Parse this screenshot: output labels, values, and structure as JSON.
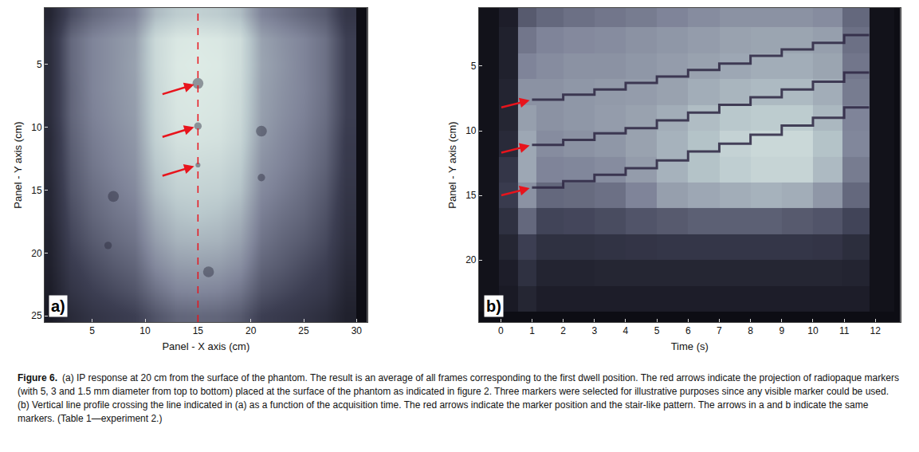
{
  "chart_data": [
    {
      "type": "heatmap",
      "panel": "a)",
      "xlabel": "Panel - X axis (cm)",
      "ylabel": "Panel - Y axis (cm)",
      "xlim": [
        0.5,
        31
      ],
      "ylim": [
        25.5,
        0.5
      ],
      "xticks": [
        5,
        10,
        15,
        20,
        25,
        30
      ],
      "yticks": [
        5,
        10,
        15,
        20,
        25
      ],
      "x": [
        1,
        3,
        5,
        7,
        9,
        11,
        13,
        15,
        17,
        19,
        21,
        23,
        25,
        27,
        29
      ],
      "y": [
        1,
        3,
        5,
        7,
        9,
        11,
        13,
        15,
        17,
        19,
        21,
        23,
        25
      ],
      "z": [
        [
          15,
          35,
          45,
          50,
          55,
          75,
          82,
          84,
          82,
          76,
          55,
          50,
          45,
          40,
          25
        ],
        [
          20,
          45,
          55,
          60,
          65,
          88,
          95,
          96,
          95,
          90,
          66,
          60,
          55,
          48,
          30
        ],
        [
          20,
          45,
          55,
          60,
          66,
          88,
          96,
          97,
          96,
          90,
          67,
          61,
          55,
          48,
          30
        ],
        [
          20,
          44,
          55,
          60,
          65,
          87,
          95,
          96,
          95,
          89,
          66,
          60,
          55,
          48,
          30
        ],
        [
          20,
          44,
          54,
          59,
          64,
          86,
          94,
          95,
          94,
          88,
          65,
          59,
          54,
          47,
          30
        ],
        [
          18,
          42,
          52,
          57,
          62,
          84,
          92,
          93,
          92,
          86,
          63,
          57,
          52,
          45,
          28
        ],
        [
          18,
          40,
          50,
          55,
          60,
          80,
          88,
          89,
          88,
          82,
          60,
          55,
          50,
          43,
          27
        ],
        [
          16,
          38,
          47,
          52,
          57,
          76,
          84,
          85,
          84,
          78,
          57,
          52,
          47,
          40,
          25
        ],
        [
          15,
          35,
          44,
          49,
          53,
          70,
          78,
          80,
          78,
          72,
          53,
          48,
          44,
          37,
          23
        ],
        [
          13,
          32,
          40,
          45,
          49,
          64,
          72,
          73,
          72,
          66,
          49,
          44,
          40,
          34,
          21
        ],
        [
          12,
          28,
          35,
          40,
          44,
          57,
          64,
          65,
          64,
          59,
          44,
          40,
          35,
          30,
          18
        ],
        [
          10,
          24,
          30,
          34,
          38,
          48,
          55,
          56,
          55,
          50,
          38,
          34,
          30,
          26,
          15
        ],
        [
          8,
          18,
          24,
          27,
          30,
          38,
          44,
          45,
          44,
          40,
          30,
          27,
          24,
          20,
          12
        ]
      ],
      "zlim": [
        0,
        100
      ],
      "markers": [
        {
          "x": 15,
          "y": 6.5,
          "diameter_mm": 5
        },
        {
          "x": 15,
          "y": 9.9,
          "diameter_mm": 3
        },
        {
          "x": 15,
          "y": 13,
          "diameter_mm": 1.5
        },
        {
          "x": 21,
          "y": 10.3,
          "diameter_mm": 5
        },
        {
          "x": 21,
          "y": 14,
          "diameter_mm": 3
        },
        {
          "x": 7,
          "y": 15.5,
          "diameter_mm": 5
        },
        {
          "x": 6.5,
          "y": 19.4,
          "diameter_mm": 3
        },
        {
          "x": 16,
          "y": 21.5,
          "diameter_mm": 5
        }
      ],
      "line_x": 15,
      "arrows": [
        {
          "x": 15,
          "y": 6.5
        },
        {
          "x": 15,
          "y": 9.9
        },
        {
          "x": 15,
          "y": 13
        }
      ]
    },
    {
      "type": "heatmap",
      "panel": "b)",
      "xlabel": "Time (s)",
      "ylabel": "Panel - Y axis (cm)",
      "xlim": [
        -0.7,
        12.8
      ],
      "ylim": [
        24.8,
        0.5
      ],
      "xticks": [
        0,
        1,
        2,
        3,
        4,
        5,
        6,
        7,
        8,
        9,
        10,
        11,
        12
      ],
      "yticks": [
        5,
        10,
        15,
        20
      ],
      "x": [
        -0.4,
        0.3,
        0.8,
        1.5,
        2.5,
        3.5,
        4.5,
        5.5,
        6.5,
        7.5,
        8.5,
        9.5,
        10.5,
        11.4,
        12.2
      ],
      "y": [
        1,
        3,
        5,
        7,
        9,
        11,
        13,
        15,
        17,
        19,
        21,
        23
      ],
      "z": [
        [
          3,
          10,
          40,
          45,
          48,
          50,
          52,
          55,
          58,
          60,
          60,
          60,
          58,
          45,
          3
        ],
        [
          3,
          12,
          50,
          55,
          57,
          58,
          60,
          62,
          64,
          66,
          67,
          67,
          65,
          48,
          3
        ],
        [
          3,
          12,
          55,
          58,
          60,
          60,
          62,
          64,
          66,
          68,
          70,
          70,
          67,
          50,
          3
        ],
        [
          3,
          14,
          60,
          60,
          62,
          63,
          64,
          66,
          70,
          73,
          75,
          75,
          70,
          52,
          3
        ],
        [
          3,
          15,
          65,
          60,
          62,
          64,
          66,
          70,
          76,
          80,
          82,
          82,
          74,
          55,
          3
        ],
        [
          3,
          18,
          68,
          58,
          60,
          62,
          66,
          72,
          78,
          85,
          88,
          88,
          78,
          56,
          3
        ],
        [
          3,
          25,
          68,
          55,
          56,
          58,
          64,
          72,
          78,
          83,
          86,
          86,
          75,
          52,
          3
        ],
        [
          3,
          28,
          60,
          45,
          46,
          48,
          55,
          65,
          68,
          70,
          72,
          70,
          62,
          45,
          3
        ],
        [
          3,
          22,
          45,
          32,
          33,
          35,
          38,
          40,
          42,
          42,
          42,
          40,
          38,
          32,
          3
        ],
        [
          3,
          15,
          30,
          22,
          22,
          23,
          24,
          25,
          25,
          25,
          25,
          25,
          24,
          20,
          3
        ],
        [
          3,
          10,
          22,
          14,
          14,
          15,
          15,
          15,
          15,
          15,
          15,
          15,
          15,
          14,
          3
        ],
        [
          3,
          8,
          15,
          10,
          10,
          10,
          10,
          10,
          10,
          10,
          10,
          10,
          10,
          10,
          3
        ]
      ],
      "zlim": [
        0,
        100
      ],
      "lines": [
        {
          "x": [
            1,
            2,
            3,
            4,
            5,
            6,
            7,
            8,
            9,
            10,
            11,
            11.8
          ],
          "values": [
            7.6,
            7.2,
            6.8,
            6.3,
            5.8,
            5.3,
            4.8,
            4.2,
            3.7,
            3.2,
            2.6,
            2.6
          ]
        },
        {
          "x": [
            1,
            2,
            3,
            4,
            5,
            6,
            7,
            8,
            9,
            10,
            11,
            11.8
          ],
          "values": [
            11.1,
            10.7,
            10.2,
            9.8,
            9.2,
            8.6,
            8.0,
            7.4,
            6.8,
            6.2,
            5.5,
            5.5
          ]
        },
        {
          "x": [
            1,
            2,
            3,
            4,
            5,
            6,
            7,
            8,
            9,
            10,
            11,
            11.8
          ],
          "values": [
            14.4,
            13.9,
            13.4,
            12.9,
            12.3,
            11.6,
            11.0,
            10.3,
            9.6,
            9.0,
            8.2,
            8.2
          ]
        }
      ],
      "arrows": [
        {
          "x": 1,
          "y": 7.6
        },
        {
          "x": 1,
          "y": 11.1
        },
        {
          "x": 1,
          "y": 14.4
        }
      ]
    }
  ],
  "caption": {
    "label": "Figure 6.",
    "text": "(a) IP response at 20 cm from the surface of the phantom. The result is an average of all frames corresponding to the first dwell position. The red arrows indicate the projection of radiopaque markers (with 5, 3 and 1.5 mm diameter from top to bottom) placed at the surface of the phantom as indicated in figure 2. Three markers were selected for illustrative purposes since any visible marker could be used. (b) Vertical line profile crossing the line indicated in (a) as a function of the acquisition time. The red arrows indicate the marker position and the stair-like pattern. The arrows in a and b indicate the same markers. (Table 1—experiment 2.)"
  }
}
